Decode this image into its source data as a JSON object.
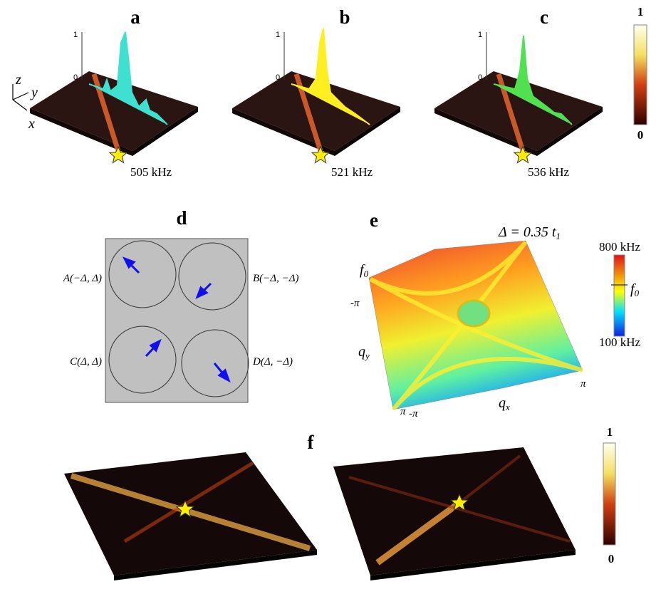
{
  "top_row": {
    "panels": [
      {
        "label": "a",
        "frequency": "505 kHz",
        "axis_max": "1",
        "axis_min": "0"
      },
      {
        "label": "b",
        "frequency": "521 kHz",
        "axis_max": "1",
        "axis_min": "0"
      },
      {
        "label": "c",
        "frequency": "536 kHz",
        "axis_max": "1",
        "axis_min": "0"
      }
    ],
    "axes": {
      "x": "x",
      "y": "y",
      "z": "z"
    },
    "colorbar": {
      "max": "1",
      "min": "0"
    }
  },
  "panel_d": {
    "label": "d",
    "sites": [
      "A(−Δ, Δ)",
      "B(−Δ, −Δ)",
      "C(Δ, Δ)",
      "D(Δ, −Δ)"
    ]
  },
  "panel_e": {
    "label": "e",
    "title": {
      "text": "Δ = 0.35 t",
      "subscript": "1"
    },
    "z_label": {
      "symbol": "f",
      "subscript": "0"
    },
    "y_label": {
      "symbol": "q",
      "subscript": "y"
    },
    "x_label": {
      "symbol": "q",
      "subscript": "x"
    },
    "y_tick_top": "-π",
    "y_tick_bottom": "π",
    "x_tick_left": "-π",
    "x_tick_right": "π",
    "colorbar": {
      "max": "800 kHz",
      "mid": {
        "symbol": "f",
        "subscript": "0"
      },
      "min": "100 kHz"
    }
  },
  "panel_f": {
    "label": "f",
    "colorbar": {
      "max": "1",
      "min": "0"
    }
  }
}
